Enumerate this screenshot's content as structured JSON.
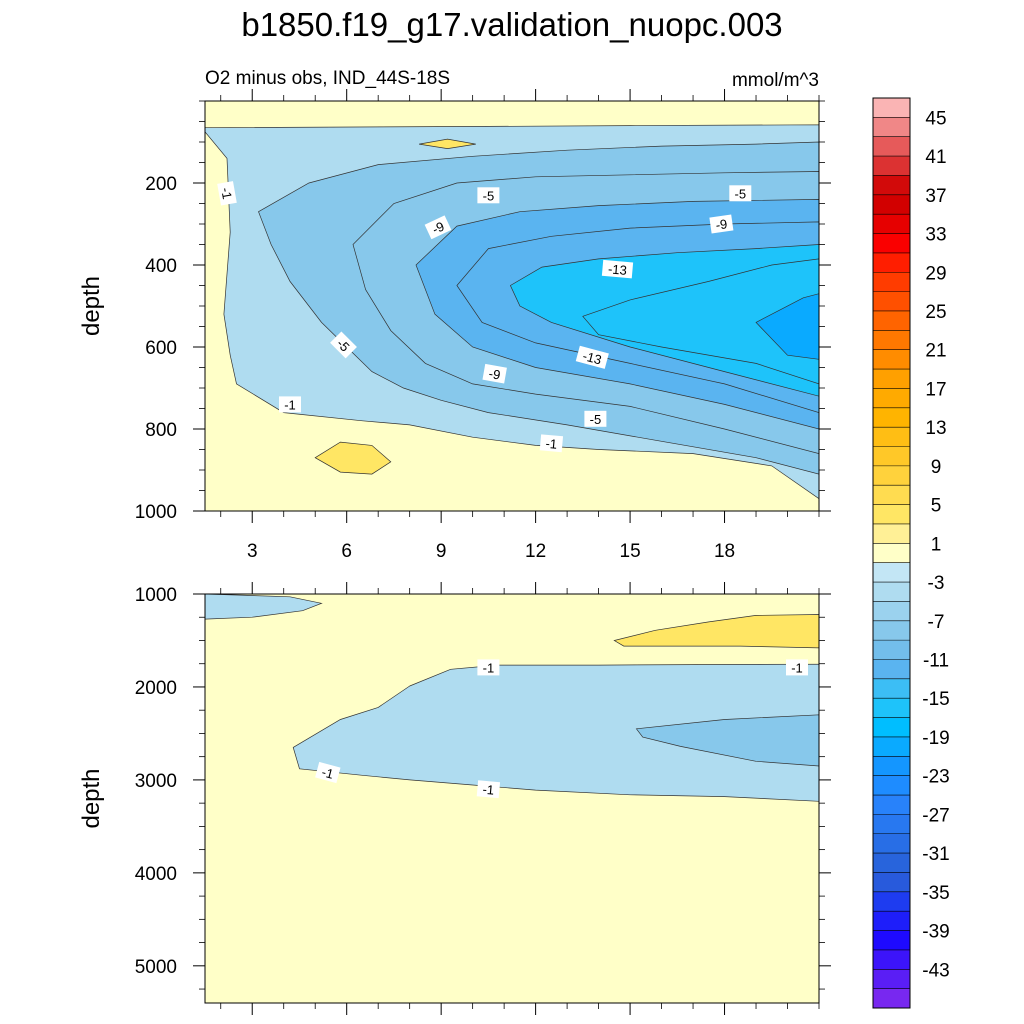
{
  "chart_data": {
    "type": "contour",
    "title": "b1850.f19_g17.validation_nuopc.003",
    "subtitle_left": "O2 minus obs, IND_44S-18S",
    "units": "mmol/m^3",
    "panels": [
      {
        "id": "upper",
        "ylabel": "depth",
        "ylim": [
          0,
          1000
        ],
        "y_reversed": true,
        "y_ticks": [
          200,
          400,
          600,
          800,
          1000
        ],
        "xlim": [
          1.5,
          21
        ],
        "x_ticks": [
          3,
          6,
          9,
          12,
          15,
          18
        ],
        "background_level": 1,
        "regions": [
          {
            "level": -3,
            "poly": [
              [
                1.5,
                65
              ],
              [
                10.5,
                62
              ],
              [
                15,
                60
              ],
              [
                21,
                58
              ],
              [
                21,
                970
              ],
              [
                19.5,
                890
              ],
              [
                17,
                860
              ],
              [
                14,
                850
              ],
              [
                12,
                840
              ],
              [
                10,
                820
              ],
              [
                8,
                790
              ],
              [
                6.5,
                780
              ],
              [
                4,
                760
              ],
              [
                2.5,
                690
              ],
              [
                2.3,
                620
              ],
              [
                2.1,
                520
              ],
              [
                2.3,
                320
              ],
              [
                2.2,
                140
              ],
              [
                1.5,
                75
              ]
            ]
          },
          {
            "level": -7,
            "poly": [
              [
                3.2,
                270
              ],
              [
                4.8,
                200
              ],
              [
                7,
                155
              ],
              [
                10,
                135
              ],
              [
                13,
                120
              ],
              [
                16,
                110
              ],
              [
                19,
                105
              ],
              [
                21,
                100
              ],
              [
                21,
                910
              ],
              [
                19,
                870
              ],
              [
                16,
                830
              ],
              [
                13,
                790
              ],
              [
                10.5,
                760
              ],
              [
                9,
                730
              ],
              [
                7.8,
                700
              ],
              [
                6.8,
                660
              ],
              [
                6,
                600
              ],
              [
                5.2,
                540
              ],
              [
                4.2,
                440
              ],
              [
                3.6,
                350
              ]
            ]
          },
          {
            "level": -7,
            "poly": [
              [
                6.2,
                350
              ],
              [
                7.5,
                250
              ],
              [
                9.5,
                200
              ],
              [
                12,
                185
              ],
              [
                15,
                180
              ],
              [
                18,
                175
              ],
              [
                21,
                172
              ],
              [
                21,
                860
              ],
              [
                18,
                800
              ],
              [
                15,
                745
              ],
              [
                12,
                715
              ],
              [
                10,
                690
              ],
              [
                8.5,
                640
              ],
              [
                7.4,
                560
              ],
              [
                6.6,
                460
              ]
            ]
          },
          {
            "level": -11,
            "poly": [
              [
                8.2,
                400
              ],
              [
                9.5,
                305
              ],
              [
                11.5,
                270
              ],
              [
                14,
                255
              ],
              [
                17,
                245
              ],
              [
                21,
                240
              ],
              [
                21,
                800
              ],
              [
                18,
                740
              ],
              [
                15,
                690
              ],
              [
                12,
                650
              ],
              [
                10,
                600
              ],
              [
                8.8,
                520
              ]
            ]
          },
          {
            "level": -11,
            "poly": [
              [
                9.5,
                450
              ],
              [
                10.5,
                360
              ],
              [
                12.5,
                330
              ],
              [
                15,
                310
              ],
              [
                18,
                300
              ],
              [
                21,
                295
              ],
              [
                21,
                760
              ],
              [
                18,
                690
              ],
              [
                15,
                640
              ],
              [
                12,
                590
              ],
              [
                10.3,
                540
              ]
            ]
          },
          {
            "level": -15,
            "poly": [
              [
                11.2,
                450
              ],
              [
                12.2,
                405
              ],
              [
                14,
                385
              ],
              [
                16.5,
                370
              ],
              [
                19,
                360
              ],
              [
                21,
                350
              ],
              [
                21,
                720
              ],
              [
                18,
                660
              ],
              [
                15,
                600
              ],
              [
                12.5,
                540
              ],
              [
                11.5,
                500
              ]
            ]
          },
          {
            "level": -15,
            "poly": [
              [
                13.5,
                525
              ],
              [
                15,
                485
              ],
              [
                17.5,
                440
              ],
              [
                19.5,
                400
              ],
              [
                21,
                385
              ],
              [
                21,
                690
              ],
              [
                19,
                640
              ],
              [
                16,
                600
              ],
              [
                14,
                570
              ]
            ]
          },
          {
            "level": -19,
            "poly": [
              [
                19,
                540
              ],
              [
                20.5,
                480
              ],
              [
                21,
                470
              ],
              [
                21,
                630
              ],
              [
                20,
                620
              ]
            ]
          }
        ],
        "positive_patches": [
          {
            "level": 5,
            "poly": [
              [
                5,
                870
              ],
              [
                5.8,
                832
              ],
              [
                6.8,
                840
              ],
              [
                7.4,
                880
              ],
              [
                6.8,
                910
              ],
              [
                5.8,
                905
              ]
            ]
          },
          {
            "level": 5,
            "poly": [
              [
                8.3,
                105
              ],
              [
                9.2,
                93
              ],
              [
                10.1,
                105
              ],
              [
                9.2,
                116
              ]
            ]
          }
        ],
        "contour_labels": [
          {
            "text": "-1",
            "x": 2.2,
            "y": 225,
            "rot": 80
          },
          {
            "text": "-5",
            "x": 10.5,
            "y": 230,
            "rot": 0
          },
          {
            "text": "-5",
            "x": 18.5,
            "y": 225,
            "rot": 0
          },
          {
            "text": "-9",
            "x": 8.9,
            "y": 308,
            "rot": -25
          },
          {
            "text": "-9",
            "x": 17.9,
            "y": 300,
            "rot": -8
          },
          {
            "text": "-13",
            "x": 14.6,
            "y": 410,
            "rot": 5
          },
          {
            "text": "-5",
            "x": 5.9,
            "y": 595,
            "rot": 45
          },
          {
            "text": "-13",
            "x": 13.8,
            "y": 625,
            "rot": 15
          },
          {
            "text": "-9",
            "x": 10.7,
            "y": 665,
            "rot": 10
          },
          {
            "text": "-1",
            "x": 4.2,
            "y": 740,
            "rot": 0
          },
          {
            "text": "-5",
            "x": 13.9,
            "y": 775,
            "rot": 0
          },
          {
            "text": "-1",
            "x": 12.5,
            "y": 835,
            "rot": 5
          }
        ]
      },
      {
        "id": "lower",
        "ylabel": "depth",
        "ylim": [
          1000,
          5400
        ],
        "y_reversed": true,
        "y_ticks": [
          1000,
          2000,
          3000,
          4000,
          5000
        ],
        "xlim": [
          1.5,
          21
        ],
        "x_ticks": [
          3,
          6,
          9,
          12,
          15,
          18
        ],
        "background_level": 1,
        "regions": [
          {
            "level": -3,
            "poly": [
              [
                1.5,
                1000
              ],
              [
                4.2,
                1030
              ],
              [
                5.2,
                1100
              ],
              [
                4.6,
                1180
              ],
              [
                3,
                1250
              ],
              [
                1.5,
                1270
              ]
            ]
          },
          {
            "level": -3,
            "poly": [
              [
                8,
                1990
              ],
              [
                9.3,
                1810
              ],
              [
                10.8,
                1765
              ],
              [
                14,
                1765
              ],
              [
                17,
                1760
              ],
              [
                21,
                1755
              ],
              [
                21,
                3230
              ],
              [
                18,
                3180
              ],
              [
                15,
                3160
              ],
              [
                12,
                3110
              ],
              [
                10,
                3055
              ],
              [
                8,
                3000
              ],
              [
                6.5,
                2950
              ],
              [
                4.5,
                2880
              ],
              [
                4.3,
                2650
              ],
              [
                5.8,
                2350
              ],
              [
                7,
                2220
              ]
            ]
          },
          {
            "level": -7,
            "poly": [
              [
                15.2,
                2450
              ],
              [
                18,
                2350
              ],
              [
                21,
                2300
              ],
              [
                21,
                2850
              ],
              [
                19,
                2800
              ],
              [
                16.6,
                2640
              ],
              [
                15.4,
                2540
              ]
            ]
          }
        ],
        "positive_patches": [
          {
            "level": 5,
            "poly": [
              [
                14.5,
                1500
              ],
              [
                15.8,
                1390
              ],
              [
                17.5,
                1300
              ],
              [
                19,
                1230
              ],
              [
                21,
                1220
              ],
              [
                21,
                1580
              ],
              [
                18.5,
                1560
              ],
              [
                16,
                1560
              ],
              [
                14.8,
                1560
              ]
            ]
          }
        ],
        "contour_labels": [
          {
            "text": "-1",
            "x": 10.5,
            "y": 1790,
            "rot": 0
          },
          {
            "text": "-1",
            "x": 20.3,
            "y": 1790,
            "rot": 0
          },
          {
            "text": "-1",
            "x": 5.4,
            "y": 2920,
            "rot": 15
          },
          {
            "text": "-1",
            "x": 10.5,
            "y": 3100,
            "rot": 5
          }
        ]
      }
    ],
    "colorbar": {
      "labels": [
        "45",
        "41",
        "37",
        "33",
        "29",
        "25",
        "21",
        "17",
        "13",
        "9",
        "5",
        "1",
        "-3",
        "-7",
        "-11",
        "-15",
        "-19",
        "-23",
        "-27",
        "-31",
        "-35",
        "-39",
        "-43"
      ],
      "boxes": [
        {
          "level": 47,
          "color": "#fab4b4"
        },
        {
          "level": 45,
          "color": "#f08787"
        },
        {
          "level": 43,
          "color": "#e65a5a"
        },
        {
          "level": 41,
          "color": "#dc3232"
        },
        {
          "level": 39,
          "color": "#d20a0a"
        },
        {
          "level": 37,
          "color": "#d20000"
        },
        {
          "level": 35,
          "color": "#e60000"
        },
        {
          "level": 33,
          "color": "#fa0000"
        },
        {
          "level": 31,
          "color": "#ff1e00"
        },
        {
          "level": 29,
          "color": "#ff3c00"
        },
        {
          "level": 27,
          "color": "#ff5000"
        },
        {
          "level": 25,
          "color": "#ff6400"
        },
        {
          "level": 23,
          "color": "#ff7800"
        },
        {
          "level": 21,
          "color": "#ff8c00"
        },
        {
          "level": 19,
          "color": "#ffa000"
        },
        {
          "level": 17,
          "color": "#ffaa00"
        },
        {
          "level": 15,
          "color": "#ffb400"
        },
        {
          "level": 13,
          "color": "#ffbe14"
        },
        {
          "level": 11,
          "color": "#ffc828"
        },
        {
          "level": 9,
          "color": "#ffd23c"
        },
        {
          "level": 7,
          "color": "#ffdc50"
        },
        {
          "level": 5,
          "color": "#ffe664"
        },
        {
          "level": 3,
          "color": "#fff096"
        },
        {
          "level": 1,
          "color": "#ffffc8"
        },
        {
          "level": -1,
          "color": "#c3e6f5"
        },
        {
          "level": -3,
          "color": "#afdcf0"
        },
        {
          "level": -5,
          "color": "#9bd2ee"
        },
        {
          "level": -7,
          "color": "#87c8eb"
        },
        {
          "level": -9,
          "color": "#73beeb"
        },
        {
          "level": -11,
          "color": "#5ab4f0"
        },
        {
          "level": -13,
          "color": "#3cbef5"
        },
        {
          "level": -15,
          "color": "#1ec3fa"
        },
        {
          "level": -17,
          "color": "#00beff"
        },
        {
          "level": -19,
          "color": "#0aaaff"
        },
        {
          "level": -21,
          "color": "#1496ff"
        },
        {
          "level": -23,
          "color": "#1e8cff"
        },
        {
          "level": -25,
          "color": "#2882fa"
        },
        {
          "level": -27,
          "color": "#2878f0"
        },
        {
          "level": -29,
          "color": "#286ee6"
        },
        {
          "level": -31,
          "color": "#2864dc"
        },
        {
          "level": -33,
          "color": "#285adc"
        },
        {
          "level": -35,
          "color": "#1e3cf0"
        },
        {
          "level": -37,
          "color": "#1e1efa"
        },
        {
          "level": -39,
          "color": "#1e0aff"
        },
        {
          "level": -41,
          "color": "#3c14fa"
        },
        {
          "level": -43,
          "color": "#5a1ef5"
        },
        {
          "level": -45,
          "color": "#7828f0"
        }
      ]
    }
  }
}
